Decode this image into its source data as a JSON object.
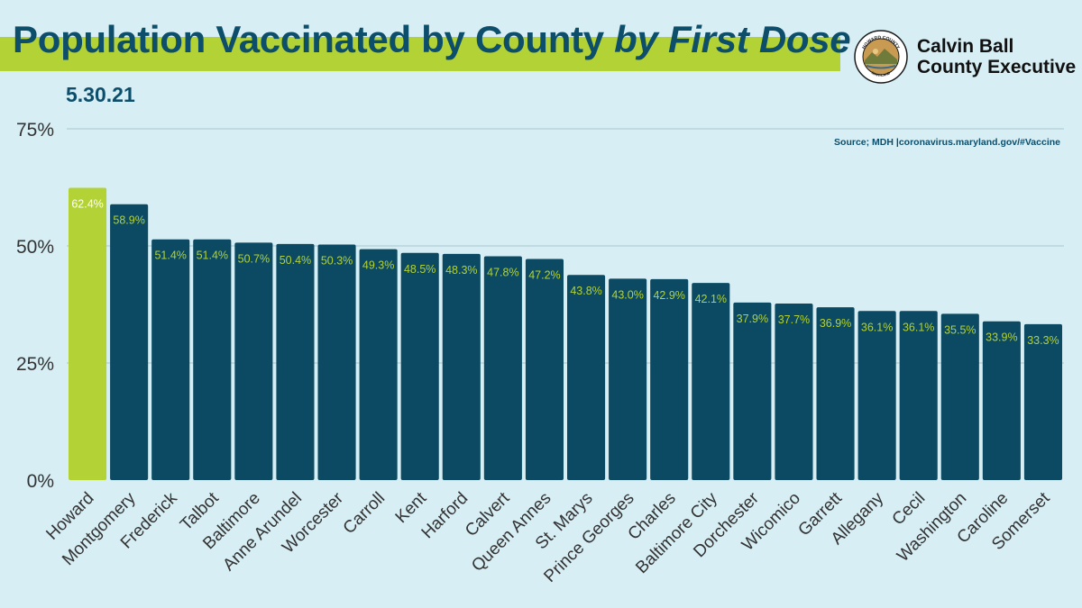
{
  "header": {
    "title_main": "Population Vaccinated by County",
    "title_italic": "by First Dose",
    "date": "5.30.21"
  },
  "branding": {
    "name_line1": "Calvin Ball",
    "name_line2": "County Executive",
    "seal_text_top": "HOWARD COUNTY",
    "seal_text_bottom": "MARYLAND"
  },
  "source": "Source; MDH |coronavirus.maryland.gov/#Vaccine",
  "colors": {
    "background": "#d6eef4",
    "highlight_bar": "#b3d235",
    "bar": "#0b4a62",
    "title": "#0d4e6b",
    "label_on_dark": "#b3d235",
    "label_on_highlight": "#ffffff",
    "grid": "#a9c6cf"
  },
  "chart_data": {
    "type": "bar",
    "title": "Population Vaccinated by County by First Dose",
    "xlabel": "",
    "ylabel": "",
    "ylim": [
      0,
      75
    ],
    "yticks": [
      0,
      25,
      50,
      75
    ],
    "ytick_labels": [
      "0%",
      "25%",
      "50%",
      "75%"
    ],
    "grid": true,
    "highlight_category": "Howard",
    "categories": [
      "Howard",
      "Montgomery",
      "Frederick",
      "Talbot",
      "Baltimore",
      "Anne Arundel",
      "Worcester",
      "Carroll",
      "Kent",
      "Harford",
      "Calvert",
      "Queen Annes",
      "St. Marys",
      "Prince Georges",
      "Charles",
      "Baltimore City",
      "Dorchester",
      "Wicomico",
      "Garrett",
      "Allegany",
      "Cecil",
      "Washington",
      "Caroline",
      "Somerset"
    ],
    "values": [
      62.4,
      58.9,
      51.4,
      51.4,
      50.7,
      50.4,
      50.3,
      49.3,
      48.5,
      48.3,
      47.8,
      47.2,
      43.8,
      43.0,
      42.9,
      42.1,
      37.9,
      37.7,
      36.9,
      36.1,
      36.1,
      35.5,
      33.9,
      33.3
    ],
    "value_labels": [
      "62.4%",
      "58.9%",
      "51.4%",
      "51.4%",
      "50.7%",
      "50.4%",
      "50.3%",
      "49.3%",
      "48.5%",
      "48.3%",
      "47.8%",
      "47.2%",
      "43.8%",
      "43.0%",
      "42.9%",
      "42.1%",
      "37.9%",
      "37.7%",
      "36.9%",
      "36.1%",
      "36.1%",
      "35.5%",
      "33.9%",
      "33.3%"
    ]
  }
}
